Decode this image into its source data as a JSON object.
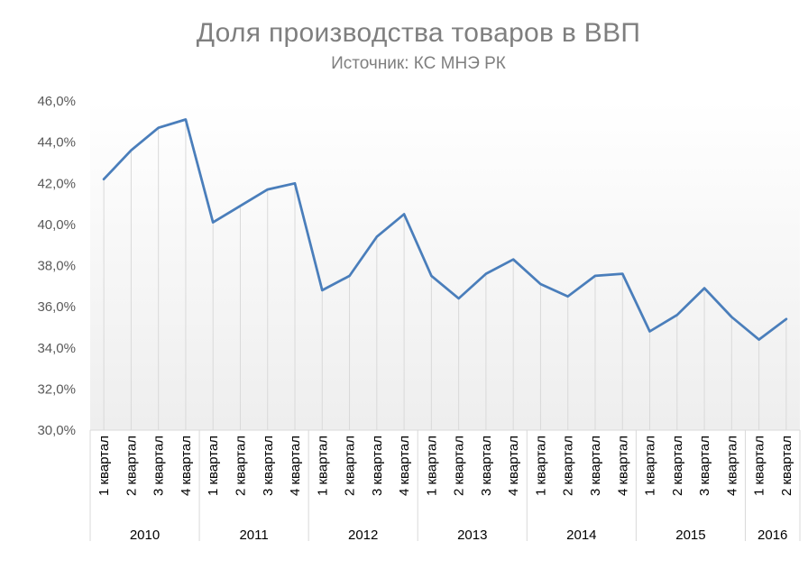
{
  "chart_data": {
    "type": "line",
    "title": "Доля производства товаров в ВВП",
    "subtitle": "Источник: КС МНЭ РК",
    "xlabel": "",
    "ylabel": "",
    "ylim": [
      30,
      46
    ],
    "yticks": [
      30,
      32,
      34,
      36,
      38,
      40,
      42,
      44,
      46
    ],
    "ytick_labels": [
      "30,0%",
      "32,0%",
      "34,0%",
      "36,0%",
      "38,0%",
      "40,0%",
      "42,0%",
      "44,0%",
      "46,0%"
    ],
    "years": [
      {
        "label": "2010",
        "quarters": [
          "1 квартал",
          "2 квартал",
          "3 квартал",
          "4 квартал"
        ]
      },
      {
        "label": "2011",
        "quarters": [
          "1 квартал",
          "2 квартал",
          "3 квартал",
          "4 квартал"
        ]
      },
      {
        "label": "2012",
        "quarters": [
          "1 квартал",
          "2 квартал",
          "3 квартал",
          "4 квартал"
        ]
      },
      {
        "label": "2013",
        "quarters": [
          "1 квартал",
          "2 квартал",
          "3 квартал",
          "4 квартал"
        ]
      },
      {
        "label": "2014",
        "quarters": [
          "1 квартал",
          "2 квартал",
          "3 квартал",
          "4 квартал"
        ]
      },
      {
        "label": "2015",
        "quarters": [
          "1 квартал",
          "2 квартал",
          "3 квартал",
          "4 квартал"
        ]
      },
      {
        "label": "2016",
        "quarters": [
          "1 квартал",
          "2 квартал"
        ]
      }
    ],
    "series": [
      {
        "values": [
          42.2,
          43.6,
          44.7,
          45.1,
          40.1,
          40.9,
          41.7,
          42.0,
          36.8,
          37.5,
          39.4,
          40.5,
          37.5,
          36.4,
          37.6,
          38.3,
          37.1,
          36.5,
          37.5,
          37.6,
          34.8,
          35.6,
          36.9,
          35.5,
          34.4,
          35.4
        ]
      }
    ],
    "grid": "vertical drop lines",
    "colors": {
      "line": "#4a7ebb",
      "axis": "#d9d9d9",
      "dropline": "#d9d9d9"
    }
  }
}
